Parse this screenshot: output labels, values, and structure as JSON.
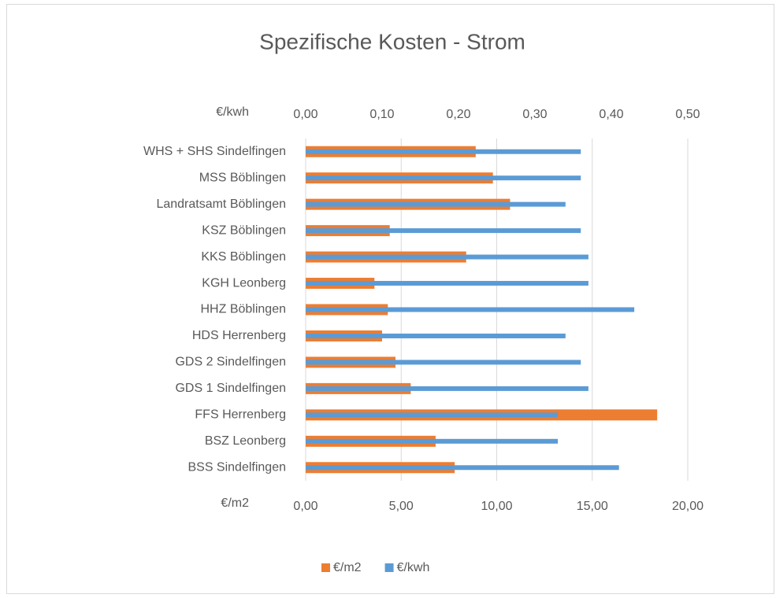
{
  "chart_data": {
    "type": "hbar",
    "title": "Spezifische Kosten - Strom",
    "x_label": "€/m2",
    "x2_label": "€/kwh",
    "categories": [
      "WHS + SHS Sindelfingen",
      "MSS Böblingen",
      "Landratsamt Böblingen",
      "KSZ Böblingen",
      "KKS Böblingen",
      "KGH Leonberg",
      "HHZ Böblingen",
      "HDS Herrenberg",
      "GDS 2 Sindelfingen",
      "GDS 1 Sindelfingen",
      "FFS Herrenberg",
      "BSZ Leonberg",
      "BSS Sindelfingen"
    ],
    "series": [
      {
        "name": "€/m2",
        "color": "#ed7d31",
        "axis": "x",
        "values": [
          8.9,
          9.8,
          10.7,
          4.4,
          8.4,
          3.6,
          4.3,
          4.0,
          4.7,
          5.5,
          18.4,
          6.8,
          7.8
        ]
      },
      {
        "name": "€/kwh",
        "color": "#5b9bd5",
        "axis": "x2",
        "values": [
          0.36,
          0.36,
          0.34,
          0.36,
          0.37,
          0.37,
          0.43,
          0.34,
          0.36,
          0.37,
          0.33,
          0.33,
          0.41
        ]
      }
    ],
    "xlim": [
      0,
      20
    ],
    "xticks": [
      {
        "value": 0,
        "label": "0,00"
      },
      {
        "value": 5,
        "label": "5,00"
      },
      {
        "value": 10,
        "label": "10,00"
      },
      {
        "value": 15,
        "label": "15,00"
      },
      {
        "value": 20,
        "label": "20,00"
      }
    ],
    "x2lim": [
      0,
      0.5
    ],
    "x2ticks": [
      {
        "value": 0,
        "label": "0,00"
      },
      {
        "value": 0.1,
        "label": "0,10"
      },
      {
        "value": 0.2,
        "label": "0,20"
      },
      {
        "value": 0.3,
        "label": "0,30"
      },
      {
        "value": 0.4,
        "label": "0,40"
      },
      {
        "value": 0.5,
        "label": "0,50"
      }
    ],
    "grid": true,
    "legend": "bottom"
  }
}
